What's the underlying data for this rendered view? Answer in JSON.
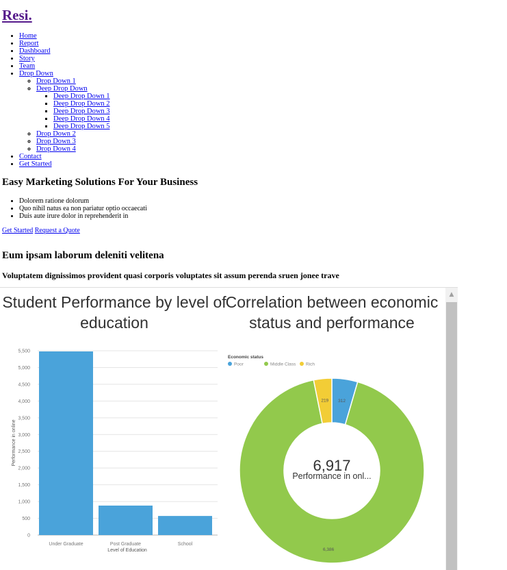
{
  "site": {
    "logo": "Resi."
  },
  "nav": {
    "items": [
      {
        "label": "Home"
      },
      {
        "label": "Report"
      },
      {
        "label": "Dashboard"
      },
      {
        "label": "Story"
      },
      {
        "label": "Team"
      },
      {
        "label": "Drop Down",
        "children": [
          {
            "label": "Drop Down 1"
          },
          {
            "label": "Deep Drop Down",
            "children": [
              {
                "label": "Deep Drop Down 1"
              },
              {
                "label": "Deep Drop Down 2"
              },
              {
                "label": "Deep Drop Down 3"
              },
              {
                "label": "Deep Drop Down 4"
              },
              {
                "label": "Deep Drop Down 5"
              }
            ]
          },
          {
            "label": "Drop Down 2"
          },
          {
            "label": "Drop Down 3"
          },
          {
            "label": "Drop Down 4"
          }
        ]
      },
      {
        "label": "Contact"
      },
      {
        "label": "Get Started"
      }
    ]
  },
  "hero": {
    "title": "Easy Marketing Solutions For Your Business",
    "bullets": [
      "Dolorem ratione dolorum",
      "Quo nihil natus ea non pariatur optio occaecati",
      "Duis aute irure dolor in reprehenderit in"
    ],
    "primary_cta": "Get Started",
    "secondary_cta": "Request a Quote"
  },
  "about": {
    "title": "Eum ipsam laborum deleniti velitena",
    "subtitle": "Voluptatem dignissimos provident quasi corporis voluptates sit assum perenda sruen jonee trave"
  },
  "colors": {
    "blue": "#4aa3da",
    "green": "#92c94c",
    "yellow": "#f2cd36",
    "grid": "#e4e4e4",
    "axis_text": "#777777"
  },
  "chart_data": [
    {
      "type": "bar",
      "title": "Student Performance by level of education",
      "xlabel": "Level of Education",
      "ylabel": "Performance in online",
      "categories": [
        "Under Graduate",
        "Post Graduate",
        "School"
      ],
      "values": [
        5480,
        880,
        570
      ],
      "ylim": [
        0,
        5500
      ],
      "yticks": [
        "0",
        "500",
        "1,000",
        "1,500",
        "2,000",
        "2,500",
        "3,000",
        "3,500",
        "4,000",
        "4,500",
        "5,000",
        "5,500"
      ],
      "grid": true
    },
    {
      "type": "pie",
      "title": "Correlation between economic status and performance",
      "legend_title": "Economic status",
      "legend_position": "top-left",
      "labels": [
        "Poor",
        "Middle Class",
        "Rich"
      ],
      "values": [
        312,
        6386,
        219
      ],
      "value_labels": [
        "312",
        "6,386",
        "219"
      ],
      "center_value": "6,917",
      "center_label": "Performance in onl..."
    }
  ]
}
